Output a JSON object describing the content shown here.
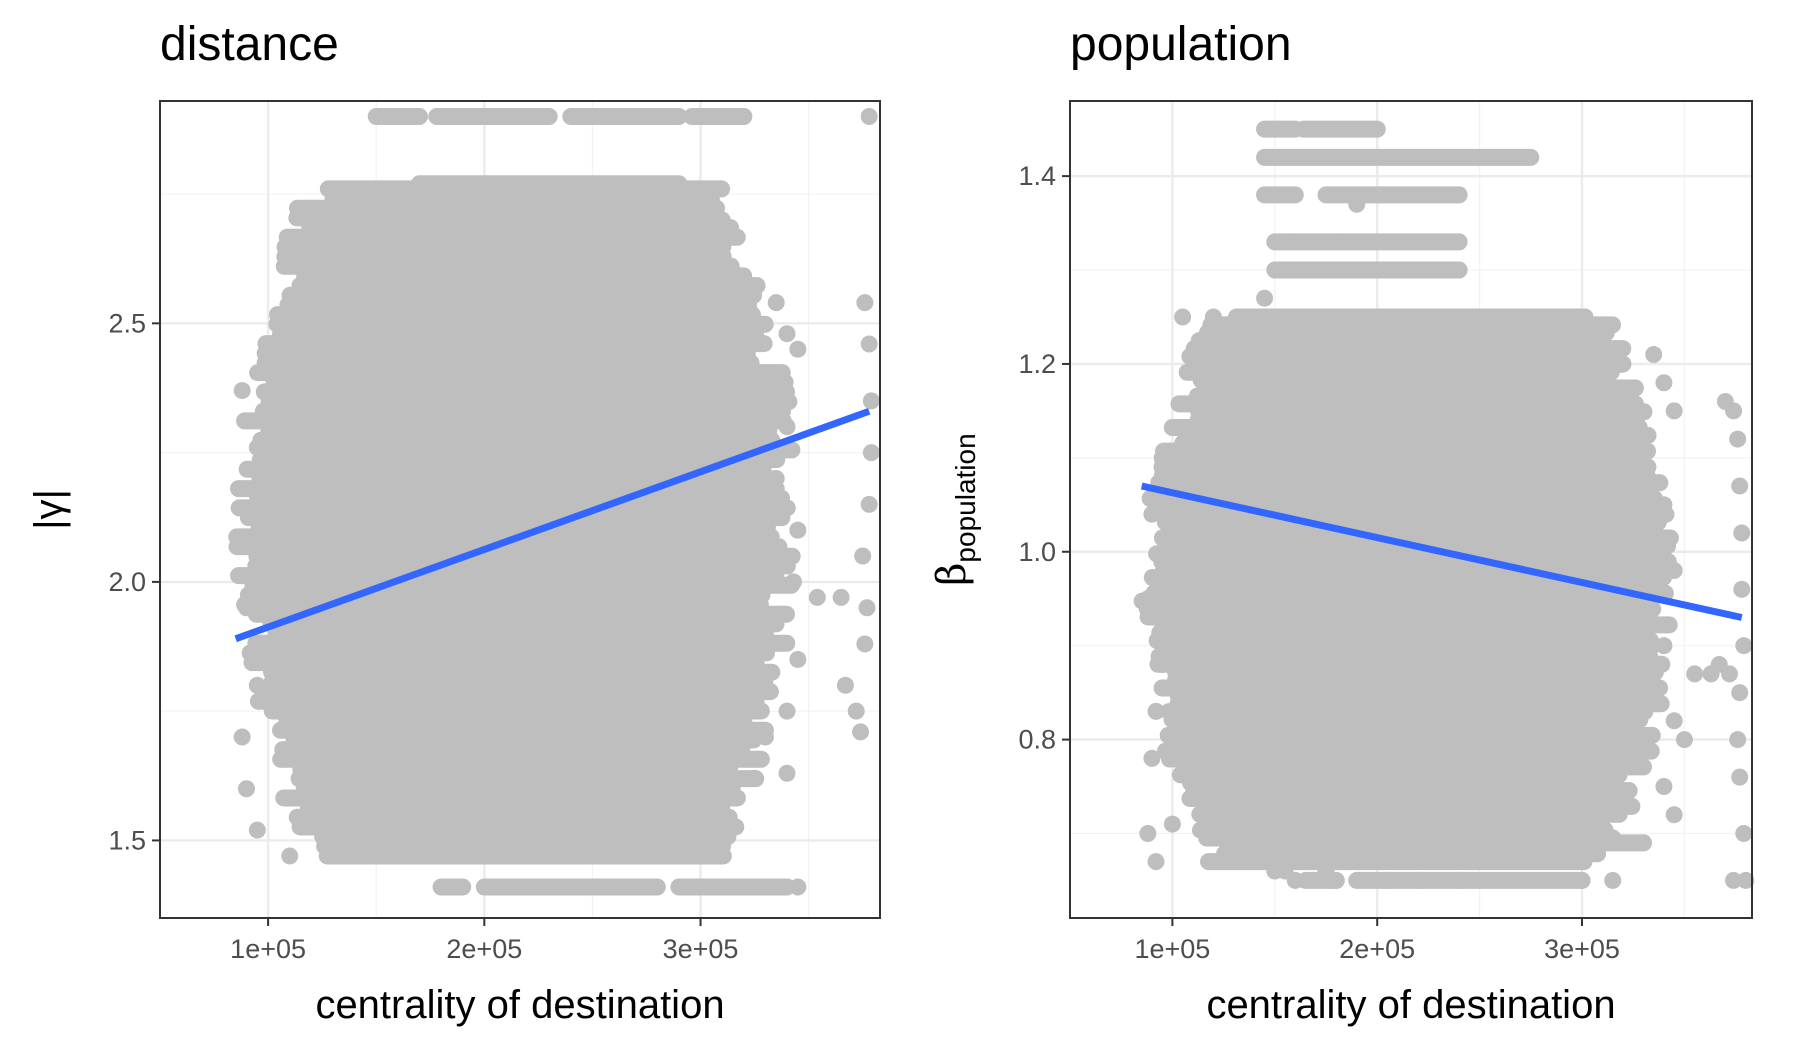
{
  "chart_data": [
    {
      "type": "scatter",
      "title": "distance",
      "xlabel": "centrality of destination",
      "ylabel": "|γ|",
      "xlim": [
        50000,
        383000
      ],
      "ylim": [
        1.35,
        2.93
      ],
      "xticks": [
        100000,
        200000,
        300000
      ],
      "xtick_labels": [
        "1e+05",
        "2e+05",
        "3e+05"
      ],
      "yticks": [
        1.5,
        2.0,
        2.5
      ],
      "ytick_labels": [
        "1.5",
        "2.0",
        "2.5"
      ],
      "grid": true,
      "point_color": "#bebebe",
      "trend_color": "#3366ff",
      "trend_line": {
        "x": [
          85000,
          378000
        ],
        "y": [
          1.89,
          2.33
        ]
      },
      "point_cloud": {
        "x_range": [
          85000,
          345000
        ],
        "y_range": [
          1.47,
          2.76
        ]
      },
      "points": [
        [
          88000,
          2.37
        ],
        [
          95000,
          2.26
        ],
        [
          110000,
          2.43
        ],
        [
          120000,
          2.43
        ],
        [
          140000,
          2.42
        ],
        [
          150000,
          2.55
        ],
        [
          165000,
          2.58
        ],
        [
          175000,
          2.76
        ],
        [
          185000,
          2.65
        ],
        [
          195000,
          2.76
        ],
        [
          210000,
          2.76
        ],
        [
          230000,
          2.75
        ],
        [
          250000,
          2.76
        ],
        [
          265000,
          2.76
        ],
        [
          280000,
          2.74
        ],
        [
          290000,
          2.71
        ],
        [
          305000,
          2.74
        ],
        [
          310000,
          2.7
        ],
        [
          320000,
          2.53
        ],
        [
          335000,
          2.54
        ],
        [
          340000,
          2.48
        ],
        [
          345000,
          2.45
        ],
        [
          325000,
          2.34
        ],
        [
          340000,
          2.3
        ],
        [
          335000,
          2.2
        ],
        [
          345000,
          2.1
        ],
        [
          343000,
          2.0
        ],
        [
          330000,
          1.9
        ],
        [
          345000,
          1.85
        ],
        [
          340000,
          1.75
        ],
        [
          330000,
          1.7
        ],
        [
          340000,
          1.63
        ],
        [
          325000,
          1.62
        ],
        [
          300000,
          1.63
        ],
        [
          270000,
          1.64
        ],
        [
          240000,
          1.64
        ],
        [
          210000,
          1.64
        ],
        [
          180000,
          1.6
        ],
        [
          150000,
          1.55
        ],
        [
          130000,
          1.5
        ],
        [
          110000,
          1.47
        ],
        [
          95000,
          1.52
        ],
        [
          90000,
          1.6
        ],
        [
          88000,
          1.7
        ],
        [
          95000,
          1.8
        ],
        [
          90000,
          1.95
        ],
        [
          95000,
          2.08
        ],
        [
          100000,
          2.18
        ],
        [
          365000,
          1.97
        ],
        [
          367000,
          1.8
        ],
        [
          372000,
          1.75
        ],
        [
          374000,
          1.71
        ],
        [
          376000,
          1.88
        ],
        [
          377000,
          1.95
        ],
        [
          375000,
          2.05
        ],
        [
          378000,
          2.15
        ],
        [
          379000,
          2.25
        ],
        [
          379000,
          2.35
        ],
        [
          378000,
          2.46
        ],
        [
          376000,
          2.54
        ],
        [
          354000,
          1.97
        ],
        [
          112000,
          2.34
        ],
        [
          160000,
          2.45
        ],
        [
          120000,
          1.9
        ],
        [
          300000,
          2.3
        ],
        [
          250000,
          2.2
        ],
        [
          200000,
          2.0
        ],
        [
          170000,
          1.85
        ],
        [
          230000,
          1.75
        ],
        [
          280000,
          1.95
        ],
        [
          310000,
          2.05
        ],
        [
          140000,
          1.75
        ]
      ],
      "band_rows": [
        {
          "y": 2.9,
          "x": [
            150000,
            320000
          ],
          "gaps": [
            [
              170000,
              178000
            ],
            [
              230000,
              240000
            ],
            [
              290000,
              296000
            ]
          ]
        },
        {
          "y": 1.41,
          "x": [
            180000,
            340000
          ],
          "gaps": [
            [
              190000,
              200000
            ],
            [
              280000,
              290000
            ]
          ]
        },
        {
          "y": 1.49,
          "x": [
            160000,
            270000
          ],
          "gaps": [
            [
              210000,
              215000
            ]
          ]
        },
        {
          "y": 2.77,
          "x": [
            170000,
            290000
          ],
          "gaps": []
        },
        {
          "y": 2.7,
          "x": [
            190000,
            290000
          ],
          "gaps": []
        },
        {
          "y": 2.63,
          "x": [
            175000,
            290000
          ],
          "gaps": []
        }
      ],
      "isolated_points": [
        [
          378000,
          2.9
        ],
        [
          320000,
          2.9
        ],
        [
          300000,
          1.41
        ],
        [
          330000,
          1.41
        ],
        [
          345000,
          1.41
        ]
      ]
    },
    {
      "type": "scatter",
      "title": "population",
      "xlabel": "centrality of destination",
      "ylabel": "β",
      "ylabel_sub": "population",
      "xlim": [
        50000,
        383000
      ],
      "ylim": [
        0.61,
        1.48
      ],
      "xticks": [
        100000,
        200000,
        300000
      ],
      "xtick_labels": [
        "1e+05",
        "2e+05",
        "3e+05"
      ],
      "yticks": [
        0.8,
        1.0,
        1.2,
        1.4
      ],
      "ytick_labels": [
        "0.8",
        "1.0",
        "1.2",
        "1.4"
      ],
      "grid": true,
      "point_color": "#bebebe",
      "trend_color": "#3366ff",
      "trend_line": {
        "x": [
          85000,
          378000
        ],
        "y": [
          1.07,
          0.93
        ]
      },
      "point_cloud": {
        "x_range": [
          85000,
          345000
        ],
        "y_range": [
          0.67,
          1.25
        ]
      },
      "points": [
        [
          88000,
          0.7
        ],
        [
          92000,
          0.67
        ],
        [
          100000,
          0.71
        ],
        [
          110000,
          0.75
        ],
        [
          130000,
          0.67
        ],
        [
          150000,
          0.66
        ],
        [
          160000,
          0.65
        ],
        [
          175000,
          0.66
        ],
        [
          180000,
          0.65
        ],
        [
          205000,
          0.65
        ],
        [
          220000,
          0.65
        ],
        [
          240000,
          0.65
        ],
        [
          90000,
          1.04
        ],
        [
          88000,
          0.95
        ],
        [
          95000,
          0.88
        ],
        [
          92000,
          0.83
        ],
        [
          90000,
          0.78
        ],
        [
          95000,
          1.1
        ],
        [
          105000,
          1.25
        ],
        [
          120000,
          1.25
        ],
        [
          145000,
          1.27
        ],
        [
          160000,
          1.33
        ],
        [
          180000,
          1.33
        ],
        [
          190000,
          1.37
        ],
        [
          300000,
          1.23
        ],
        [
          310000,
          1.21
        ],
        [
          320000,
          1.2
        ],
        [
          335000,
          1.21
        ],
        [
          340000,
          1.18
        ],
        [
          345000,
          1.15
        ],
        [
          340000,
          1.05
        ],
        [
          345000,
          0.98
        ],
        [
          340000,
          0.9
        ],
        [
          345000,
          0.82
        ],
        [
          340000,
          0.75
        ],
        [
          350000,
          0.8
        ],
        [
          345000,
          0.72
        ],
        [
          330000,
          0.69
        ],
        [
          355000,
          0.87
        ],
        [
          363000,
          0.87
        ],
        [
          367000,
          0.88
        ],
        [
          370000,
          1.16
        ],
        [
          374000,
          1.15
        ],
        [
          376000,
          1.12
        ],
        [
          377000,
          1.07
        ],
        [
          378000,
          1.02
        ],
        [
          378000,
          0.96
        ],
        [
          379000,
          0.9
        ],
        [
          377000,
          0.85
        ],
        [
          376000,
          0.8
        ],
        [
          377000,
          0.76
        ],
        [
          374000,
          0.65
        ],
        [
          379000,
          0.7
        ],
        [
          372000,
          0.87
        ],
        [
          300000,
          1.05
        ],
        [
          250000,
          1.1
        ],
        [
          200000,
          1.0
        ],
        [
          150000,
          0.95
        ],
        [
          230000,
          0.85
        ],
        [
          280000,
          0.9
        ],
        [
          120000,
          1.1
        ],
        [
          170000,
          1.15
        ],
        [
          260000,
          0.78
        ],
        [
          310000,
          0.95
        ],
        [
          140000,
          0.85
        ],
        [
          210000,
          1.2
        ]
      ],
      "band_rows": [
        {
          "y": 1.45,
          "x": [
            145000,
            200000
          ],
          "gaps": [
            [
              160000,
              164000
            ]
          ]
        },
        {
          "y": 1.42,
          "x": [
            145000,
            275000
          ],
          "gaps": []
        },
        {
          "y": 1.38,
          "x": [
            145000,
            240000
          ],
          "gaps": [
            [
              160000,
              175000
            ]
          ]
        },
        {
          "y": 1.33,
          "x": [
            150000,
            240000
          ],
          "gaps": []
        },
        {
          "y": 1.3,
          "x": [
            150000,
            240000
          ],
          "gaps": []
        },
        {
          "y": 0.65,
          "x": [
            165000,
            300000
          ],
          "gaps": [
            [
              180000,
              190000
            ]
          ]
        },
        {
          "y": 0.69,
          "x": [
            190000,
            330000
          ],
          "gaps": []
        }
      ],
      "isolated_points": [
        [
          300000,
          0.65
        ],
        [
          315000,
          0.65
        ],
        [
          380000,
          0.65
        ],
        [
          175000,
          0.66
        ],
        [
          155000,
          0.66
        ],
        [
          140000,
          0.67
        ]
      ]
    }
  ]
}
